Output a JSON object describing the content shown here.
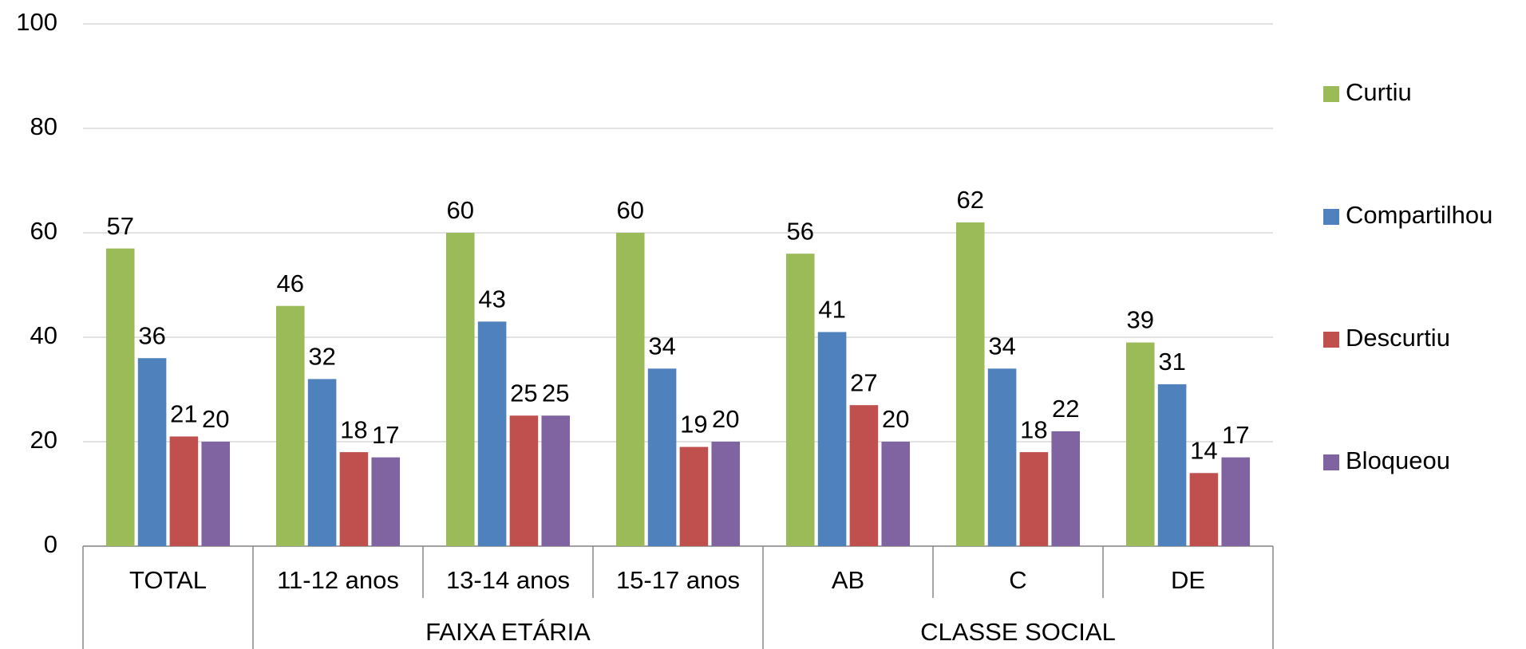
{
  "chart_data": {
    "type": "bar",
    "categories": [
      "TOTAL",
      "11-12 anos",
      "13-14 anos",
      "15-17 anos",
      "AB",
      "C",
      "DE"
    ],
    "groups": [
      {
        "label": "FAIXA ETÁRIA",
        "span": [
          1,
          3
        ]
      },
      {
        "label": "CLASSE SOCIAL",
        "span": [
          4,
          6
        ]
      }
    ],
    "series": [
      {
        "name": "Curtiu",
        "color": "#9bbb59",
        "values": [
          57,
          46,
          60,
          60,
          56,
          62,
          39
        ]
      },
      {
        "name": "Compartilhou",
        "color": "#4f81bd",
        "values": [
          36,
          32,
          43,
          34,
          41,
          34,
          31
        ]
      },
      {
        "name": "Descurtiu",
        "color": "#c0504d",
        "values": [
          21,
          18,
          25,
          19,
          27,
          18,
          14
        ]
      },
      {
        "name": "Bloqueou",
        "color": "#8064a2",
        "values": [
          20,
          17,
          25,
          20,
          20,
          22,
          17
        ]
      }
    ],
    "ylim": [
      0,
      100
    ],
    "yticks": [
      0,
      20,
      40,
      60,
      80,
      100
    ],
    "grid": true,
    "legend": "right"
  }
}
